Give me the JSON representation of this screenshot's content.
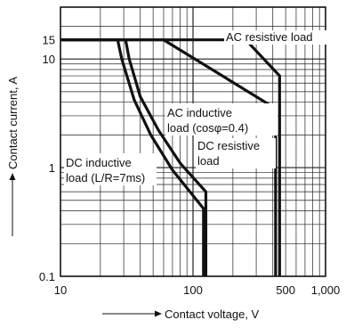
{
  "chart_data": {
    "type": "line",
    "xlabel": "Contact voltage, V",
    "ylabel": "Contact current, A",
    "x_scale": "log",
    "y_scale": "log",
    "xlim": [
      10,
      1000
    ],
    "ylim": [
      0.1,
      30
    ],
    "grid": true,
    "x_ticks": [
      {
        "value": 10,
        "label": "10"
      },
      {
        "value": 100,
        "label": "100"
      },
      {
        "value": 500,
        "label": "500"
      },
      {
        "value": 1000,
        "label": "1,000"
      }
    ],
    "y_ticks": [
      {
        "value": 0.1,
        "label": "0.1"
      },
      {
        "value": 1,
        "label": "1"
      },
      {
        "value": 10,
        "label": "10"
      },
      {
        "value": 15,
        "label": "15"
      }
    ],
    "series": [
      {
        "name": "AC resistive load",
        "line1": "AC resistive load",
        "line2": "",
        "points": [
          [
            10,
            15
          ],
          [
            250,
            15
          ],
          [
            450,
            7
          ],
          [
            450,
            0.1
          ]
        ]
      },
      {
        "name": "AC inductive load (cosφ=0.4)",
        "line1": "AC inductive",
        "line2": "load (cosφ=0.4)",
        "points": [
          [
            10,
            15
          ],
          [
            60,
            15
          ],
          [
            420,
            3.5
          ],
          [
            420,
            0.1
          ]
        ]
      },
      {
        "name": "DC resistive load",
        "line1": "DC resistive",
        "line2": "load",
        "points": [
          [
            10,
            15
          ],
          [
            31,
            15
          ],
          [
            33,
            10
          ],
          [
            40,
            4.5
          ],
          [
            55,
            2.2
          ],
          [
            80,
            1.1
          ],
          [
            125,
            0.6
          ],
          [
            125,
            0.1
          ]
        ]
      },
      {
        "name": "DC inductive load (L/R=7ms)",
        "line1": "DC inductive",
        "line2": "load (L/R=7ms)",
        "points": [
          [
            10,
            15
          ],
          [
            27,
            15
          ],
          [
            29,
            10
          ],
          [
            36,
            4.2
          ],
          [
            48,
            2.0
          ],
          [
            70,
            0.95
          ],
          [
            120,
            0.42
          ],
          [
            120,
            0.1
          ]
        ]
      }
    ]
  }
}
